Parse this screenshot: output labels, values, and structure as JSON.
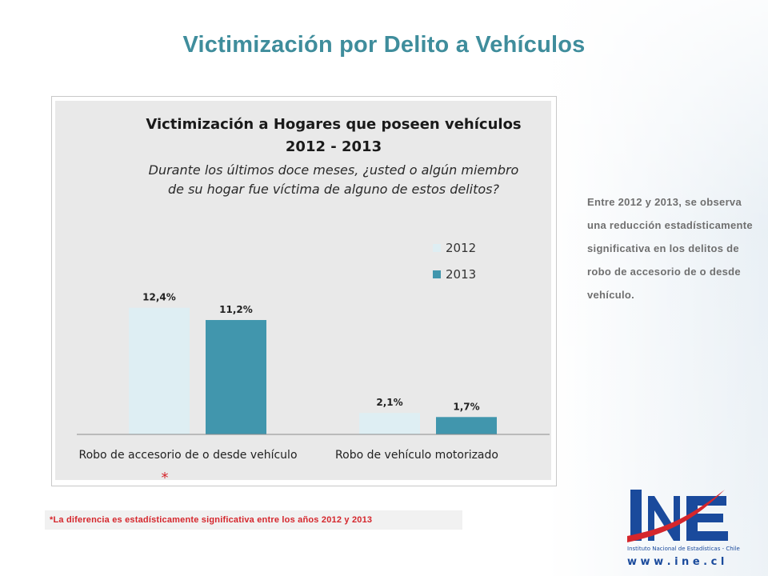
{
  "slide": {
    "title": "Victimización por Delito a Vehículos",
    "summary": "Entre 2012 y 2013, se observa una reducción estadísticamente significativa en los delitos de robo de accesorio de o desde vehículo.",
    "footnote": "*La diferencia es estadísticamente significativa entre los años 2012 y 2013",
    "significance_marker": "*"
  },
  "chart_data": {
    "type": "bar",
    "title": "Victimización  a Hogares que poseen vehículos",
    "title_line2": "2012 - 2013",
    "subtitle_line1": "Durante los últimos doce meses, ¿usted o algún miembro",
    "subtitle_line2": "de su hogar fue víctima de alguno de estos delitos?",
    "categories": [
      "Robo de accesorio de o desde vehículo",
      "Robo de vehículo motorizado"
    ],
    "series": [
      {
        "name": "2012",
        "values": [
          12.4,
          2.1
        ],
        "labels": [
          "12,4%",
          "2,1%"
        ],
        "color": "#deeef3"
      },
      {
        "name": "2013",
        "values": [
          11.2,
          1.7
        ],
        "labels": [
          "11,2%",
          "1,7%"
        ],
        "color": "#4196ad"
      }
    ],
    "ylim": [
      0,
      23.5
    ],
    "grid": false,
    "legend": "right",
    "background": "#e9e9e9"
  },
  "logo": {
    "org_name": "Instituto Nacional de Estadísticas - Chile",
    "url": "w w w . i n e . c l",
    "colors": {
      "blue": "#1a4a9c",
      "red": "#d5262c"
    }
  }
}
